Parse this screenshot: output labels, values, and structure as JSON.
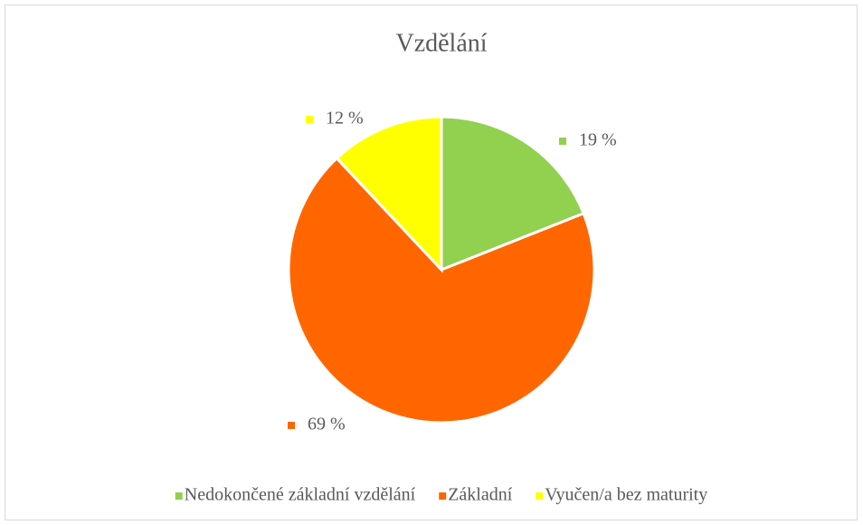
{
  "chart_data": {
    "type": "pie",
    "title": "Vzdělání",
    "categories": [
      "Nedokončené základní vzdělání",
      "Základní",
      "Vyučen/a bez maturity"
    ],
    "values": [
      19,
      69,
      12
    ],
    "value_labels": [
      "19 %",
      "69 %",
      "12 %"
    ],
    "colors": [
      "#92d050",
      "#ff6600",
      "#ffff00"
    ],
    "legend": "bottom"
  }
}
